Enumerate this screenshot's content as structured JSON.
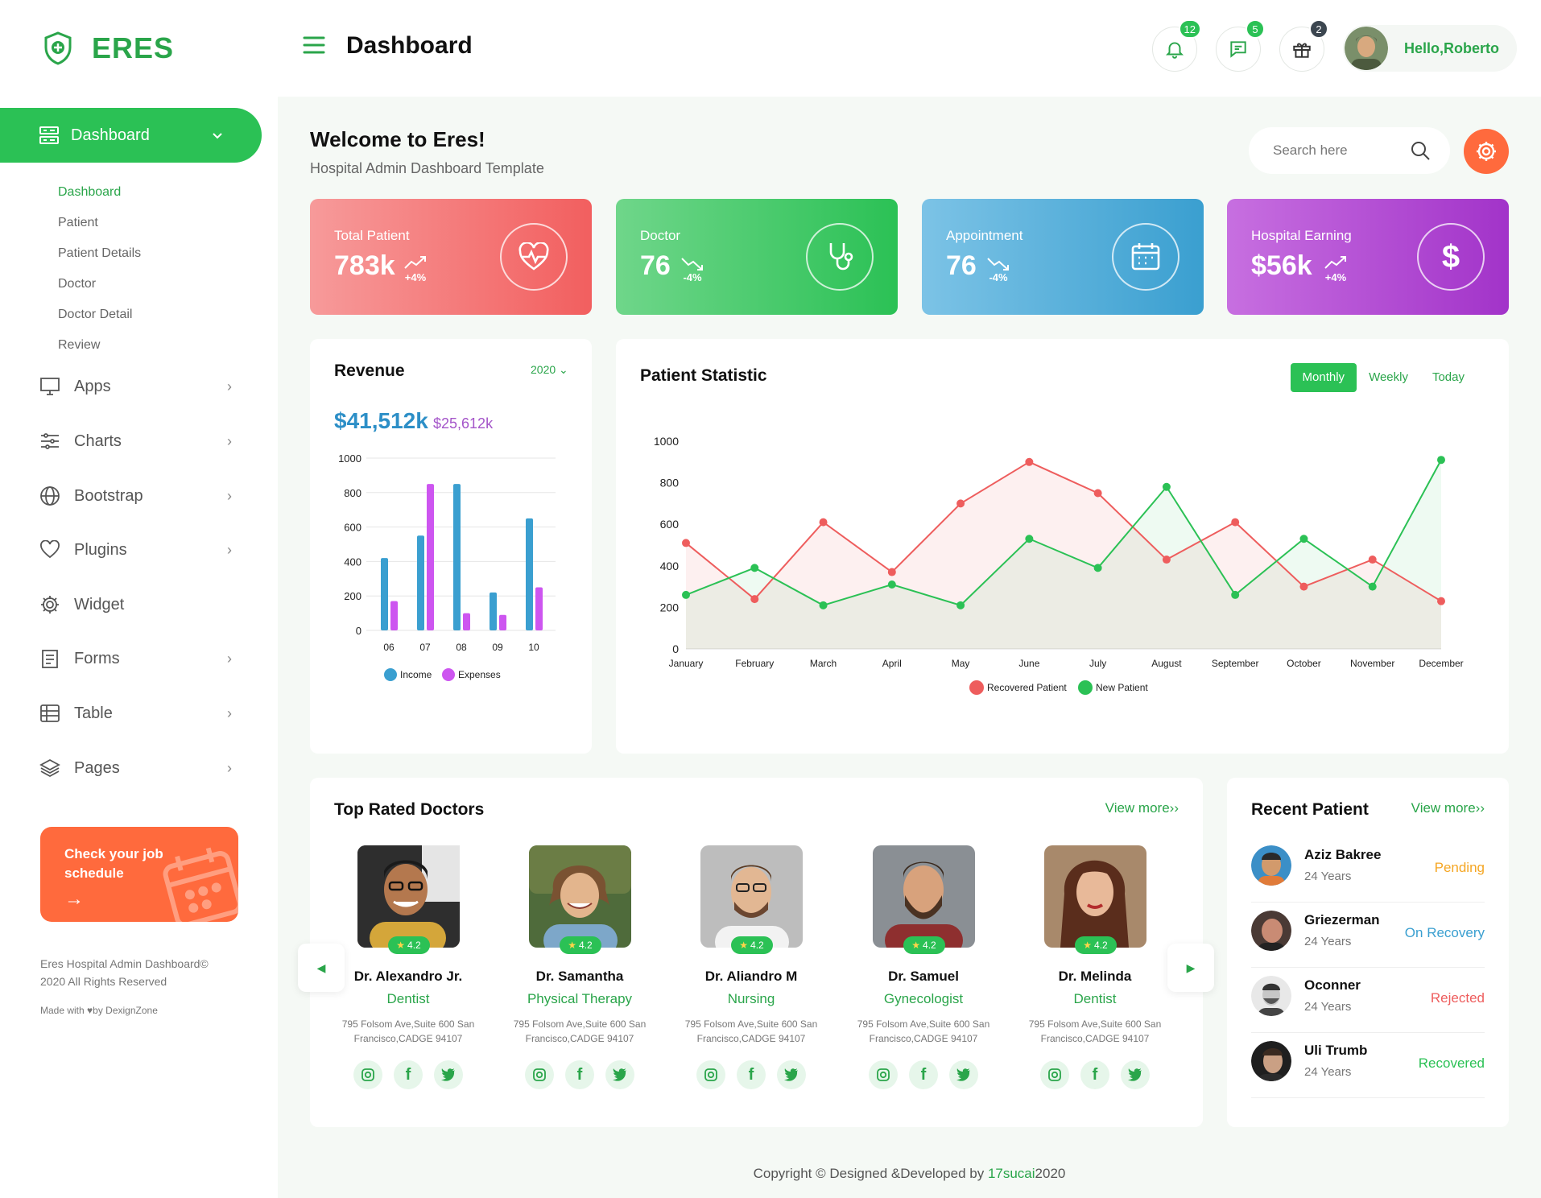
{
  "brand": {
    "name": "ERES"
  },
  "header": {
    "title": "Dashboard",
    "notifications": "12",
    "messages": "5",
    "gifts": "2",
    "greeting_prefix": "Hello,",
    "user_name": "Roberto"
  },
  "sidebar": {
    "active": "Dashboard",
    "submenu": [
      "Dashboard",
      "Patient",
      "Patient Details",
      "Doctor",
      "Doctor Detail",
      "Review"
    ],
    "items": [
      {
        "label": "Apps",
        "icon": "monitor-icon"
      },
      {
        "label": "Charts",
        "icon": "sliders-icon"
      },
      {
        "label": "Bootstrap",
        "icon": "globe-icon"
      },
      {
        "label": "Plugins",
        "icon": "heart-icon"
      },
      {
        "label": "Widget",
        "icon": "gear-icon"
      },
      {
        "label": "Forms",
        "icon": "clipboard-icon"
      },
      {
        "label": "Table",
        "icon": "table-icon"
      },
      {
        "label": "Pages",
        "icon": "layers-icon"
      }
    ],
    "promo": "Check your job schedule",
    "footer_line1": "Eres Hospital Admin Dashboard©",
    "footer_line2": "2020 All Rights Reserved",
    "footer_made": "Made with",
    "footer_by": "by DexignZone"
  },
  "welcome": {
    "title": "Welcome to Eres!",
    "subtitle": "Hospital Admin Dashboard Template",
    "search_placeholder": "Search here"
  },
  "stats": [
    {
      "label": "Total Patient",
      "value": "783k",
      "change": "+4%",
      "dir": "up",
      "icon": "heart-pulse-icon"
    },
    {
      "label": "Doctor",
      "value": "76",
      "change": "-4%",
      "dir": "down",
      "icon": "stethoscope-icon"
    },
    {
      "label": "Appointment",
      "value": "76",
      "change": "-4%",
      "dir": "down",
      "icon": "calendar-icon"
    },
    {
      "label": "Hospital Earning",
      "value": "$56k",
      "change": "+4%",
      "dir": "up",
      "icon": "dollar-icon"
    }
  ],
  "revenue": {
    "title": "Revenue",
    "year": "2020",
    "income_total": "$41,512k",
    "expense_total": "$25,612k"
  },
  "patient_statistic": {
    "title": "Patient Statistic",
    "tabs": [
      "Monthly",
      "Weekly",
      "Today"
    ],
    "active_tab": "Monthly"
  },
  "colors": {
    "green": "#2bc155",
    "income": "#3a9fd0",
    "expense": "#cd55f0",
    "recovered": "#ee5d5d",
    "new": "#2bc155",
    "orange": "#ff6a3d"
  },
  "chart_data": [
    {
      "type": "bar",
      "categories": [
        "06",
        "07",
        "08",
        "09",
        "10"
      ],
      "series": [
        {
          "name": "Income",
          "values": [
            420,
            550,
            850,
            220,
            650
          ]
        },
        {
          "name": "Expenses",
          "values": [
            170,
            850,
            100,
            90,
            250
          ]
        }
      ],
      "ylim": [
        0,
        1000
      ],
      "yticks": [
        0,
        200,
        400,
        600,
        800,
        1000
      ],
      "legend": "bottom",
      "grid": true
    },
    {
      "type": "area",
      "categories": [
        "January",
        "February",
        "March",
        "April",
        "May",
        "June",
        "July",
        "August",
        "September",
        "October",
        "November",
        "December"
      ],
      "series": [
        {
          "name": "Recovered Patient",
          "values": [
            510,
            240,
            610,
            370,
            700,
            900,
            750,
            430,
            610,
            300,
            430,
            230
          ]
        },
        {
          "name": "New Patient",
          "values": [
            260,
            390,
            210,
            310,
            210,
            530,
            390,
            780,
            260,
            530,
            300,
            910
          ]
        }
      ],
      "ylim": [
        0,
        1000
      ],
      "yticks": [
        0,
        200,
        400,
        600,
        800,
        1000
      ],
      "legend": "bottom",
      "grid": false
    }
  ],
  "doctors": {
    "title": "Top Rated Doctors",
    "view_more": "View more",
    "list": [
      {
        "name": "Dr. Alexandro Jr.",
        "specialty": "Dentist",
        "rating": "4.2",
        "address": "795 Folsom Ave,Suite 600 San Francisco,CADGE 94107"
      },
      {
        "name": "Dr. Samantha",
        "specialty": "Physical Therapy",
        "rating": "4.2",
        "address": "795 Folsom Ave,Suite 600 San Francisco,CADGE 94107"
      },
      {
        "name": "Dr. Aliandro M",
        "specialty": "Nursing",
        "rating": "4.2",
        "address": "795 Folsom Ave,Suite 600 San Francisco,CADGE 94107"
      },
      {
        "name": "Dr. Samuel",
        "specialty": "Gynecologist",
        "rating": "4.2",
        "address": "795 Folsom Ave,Suite 600 San Francisco,CADGE 94107"
      },
      {
        "name": "Dr. Melinda",
        "specialty": "Dentist",
        "rating": "4.2",
        "address": "795 Folsom Ave,Suite 600 San Francisco,CADGE 94107"
      }
    ]
  },
  "recent_patients": {
    "title": "Recent Patient",
    "view_more": "View more",
    "list": [
      {
        "name": "Aziz Bakree",
        "age": "24 Years",
        "status": "Pending",
        "status_color": "#f5a623"
      },
      {
        "name": "Griezerman",
        "age": "24 Years",
        "status": "On Recovery",
        "status_color": "#3a9fd0"
      },
      {
        "name": "Oconner",
        "age": "24 Years",
        "status": "Rejected",
        "status_color": "#ee5d5d"
      },
      {
        "name": "Uli Trumb",
        "age": "24 Years",
        "status": "Recovered",
        "status_color": "#2bc155"
      }
    ]
  },
  "footer": {
    "text": "Copyright © Designed &Developed by",
    "brand": "17sucai",
    "year": "2020"
  }
}
